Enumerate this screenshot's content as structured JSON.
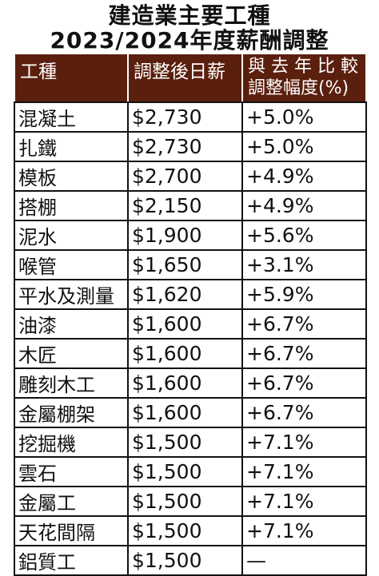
{
  "title": {
    "line1": "建造業主要工種",
    "line2": "2023/2024年度薪酬調整"
  },
  "headers": {
    "trade": "工種",
    "wage": "調整後日薪",
    "change_line1": "與 去 年 比 較",
    "change_line2": "調整幅度(%)"
  },
  "rows": [
    {
      "trade": "混凝土",
      "wage": "$2,730",
      "change": "+5.0%"
    },
    {
      "trade": "扎鐵",
      "wage": "$2,730",
      "change": "+5.0%"
    },
    {
      "trade": "模板",
      "wage": "$2,700",
      "change": "+4.9%"
    },
    {
      "trade": "搭棚",
      "wage": "$2,150",
      "change": "+4.9%"
    },
    {
      "trade": "泥水",
      "wage": "$1,900",
      "change": "+5.6%"
    },
    {
      "trade": "喉管",
      "wage": "$1,650",
      "change": "+3.1%"
    },
    {
      "trade": "平水及測量",
      "wage": "$1,620",
      "change": "+5.9%"
    },
    {
      "trade": "油漆",
      "wage": "$1,600",
      "change": "+6.7%"
    },
    {
      "trade": "木匠",
      "wage": "$1,600",
      "change": "+6.7%"
    },
    {
      "trade": "雕刻木工",
      "wage": "$1,600",
      "change": "+6.7%"
    },
    {
      "trade": "金屬棚架",
      "wage": "$1,600",
      "change": "+6.7%"
    },
    {
      "trade": "挖掘機",
      "wage": "$1,500",
      "change": "+7.1%"
    },
    {
      "trade": "雲石",
      "wage": "$1,500",
      "change": "+7.1%"
    },
    {
      "trade": "金屬工",
      "wage": "$1,500",
      "change": "+7.1%"
    },
    {
      "trade": "天花間隔",
      "wage": "$1,500",
      "change": "+7.1%"
    },
    {
      "trade": "鋁質工",
      "wage": "$1,500",
      "change": "—"
    }
  ],
  "colors": {
    "header_bg": "#5b1f0e",
    "header_text": "#ffffff"
  }
}
